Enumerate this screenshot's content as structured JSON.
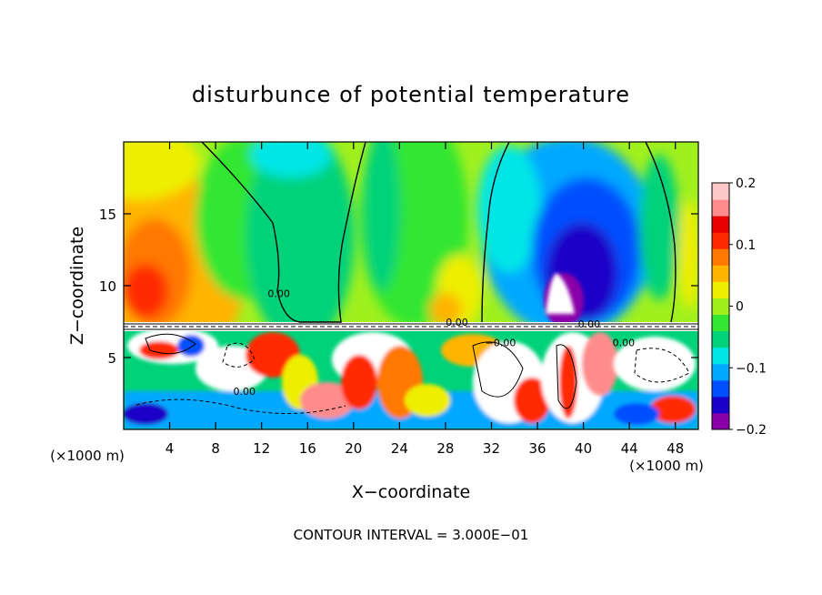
{
  "chart_data": {
    "type": "heatmap",
    "title": "disturbunce of potential temperature",
    "xlabel": "X−coordinate",
    "ylabel": "Z−coordinate",
    "x_unit_label": "(×1000 m)",
    "z_unit_label": "(×1000 m)",
    "xlim": [
      0,
      50
    ],
    "ylim": [
      0,
      20
    ],
    "x_ticks": [
      4,
      8,
      12,
      16,
      20,
      24,
      28,
      32,
      36,
      40,
      44,
      48
    ],
    "x_tick_labels": [
      "4",
      "8",
      "12",
      "16",
      "20",
      "24",
      "28",
      "32",
      "36",
      "40",
      "44",
      "48"
    ],
    "y_ticks": [
      5,
      10,
      15
    ],
    "y_tick_labels": [
      "5",
      "10",
      "15"
    ],
    "footer": "CONTOUR INTERVAL = 3.000E−01",
    "contour_labels": [
      {
        "text": "0.00",
        "x": 13.5,
        "z": 9.2
      },
      {
        "text": "0.00",
        "x": 29.0,
        "z": 7.2
      },
      {
        "text": "−0.00",
        "x": 32.8,
        "z": 5.8
      },
      {
        "text": "0.00",
        "x": 40.5,
        "z": 7.1
      },
      {
        "text": "0.00",
        "x": 43.5,
        "z": 5.8
      },
      {
        "text": "0.00",
        "x": 10.5,
        "z": 2.4
      }
    ],
    "colorbar": {
      "min": -0.2,
      "max": 0.2,
      "ticks": [
        0.2,
        0.1,
        0,
        -0.1,
        -0.2
      ],
      "tick_labels": [
        "0.2",
        "0.1",
        "0",
        "−0.1",
        "−0.2"
      ],
      "colors": [
        "#8a00a8",
        "#1a00c8",
        "#0050ff",
        "#00a8ff",
        "#00e6e6",
        "#00d27a",
        "#32e632",
        "#a0f01e",
        "#eeee00",
        "#ffb400",
        "#ff7800",
        "#ff2a00",
        "#e60000",
        "#ff8c8c",
        "#ffc8c8"
      ]
    }
  }
}
